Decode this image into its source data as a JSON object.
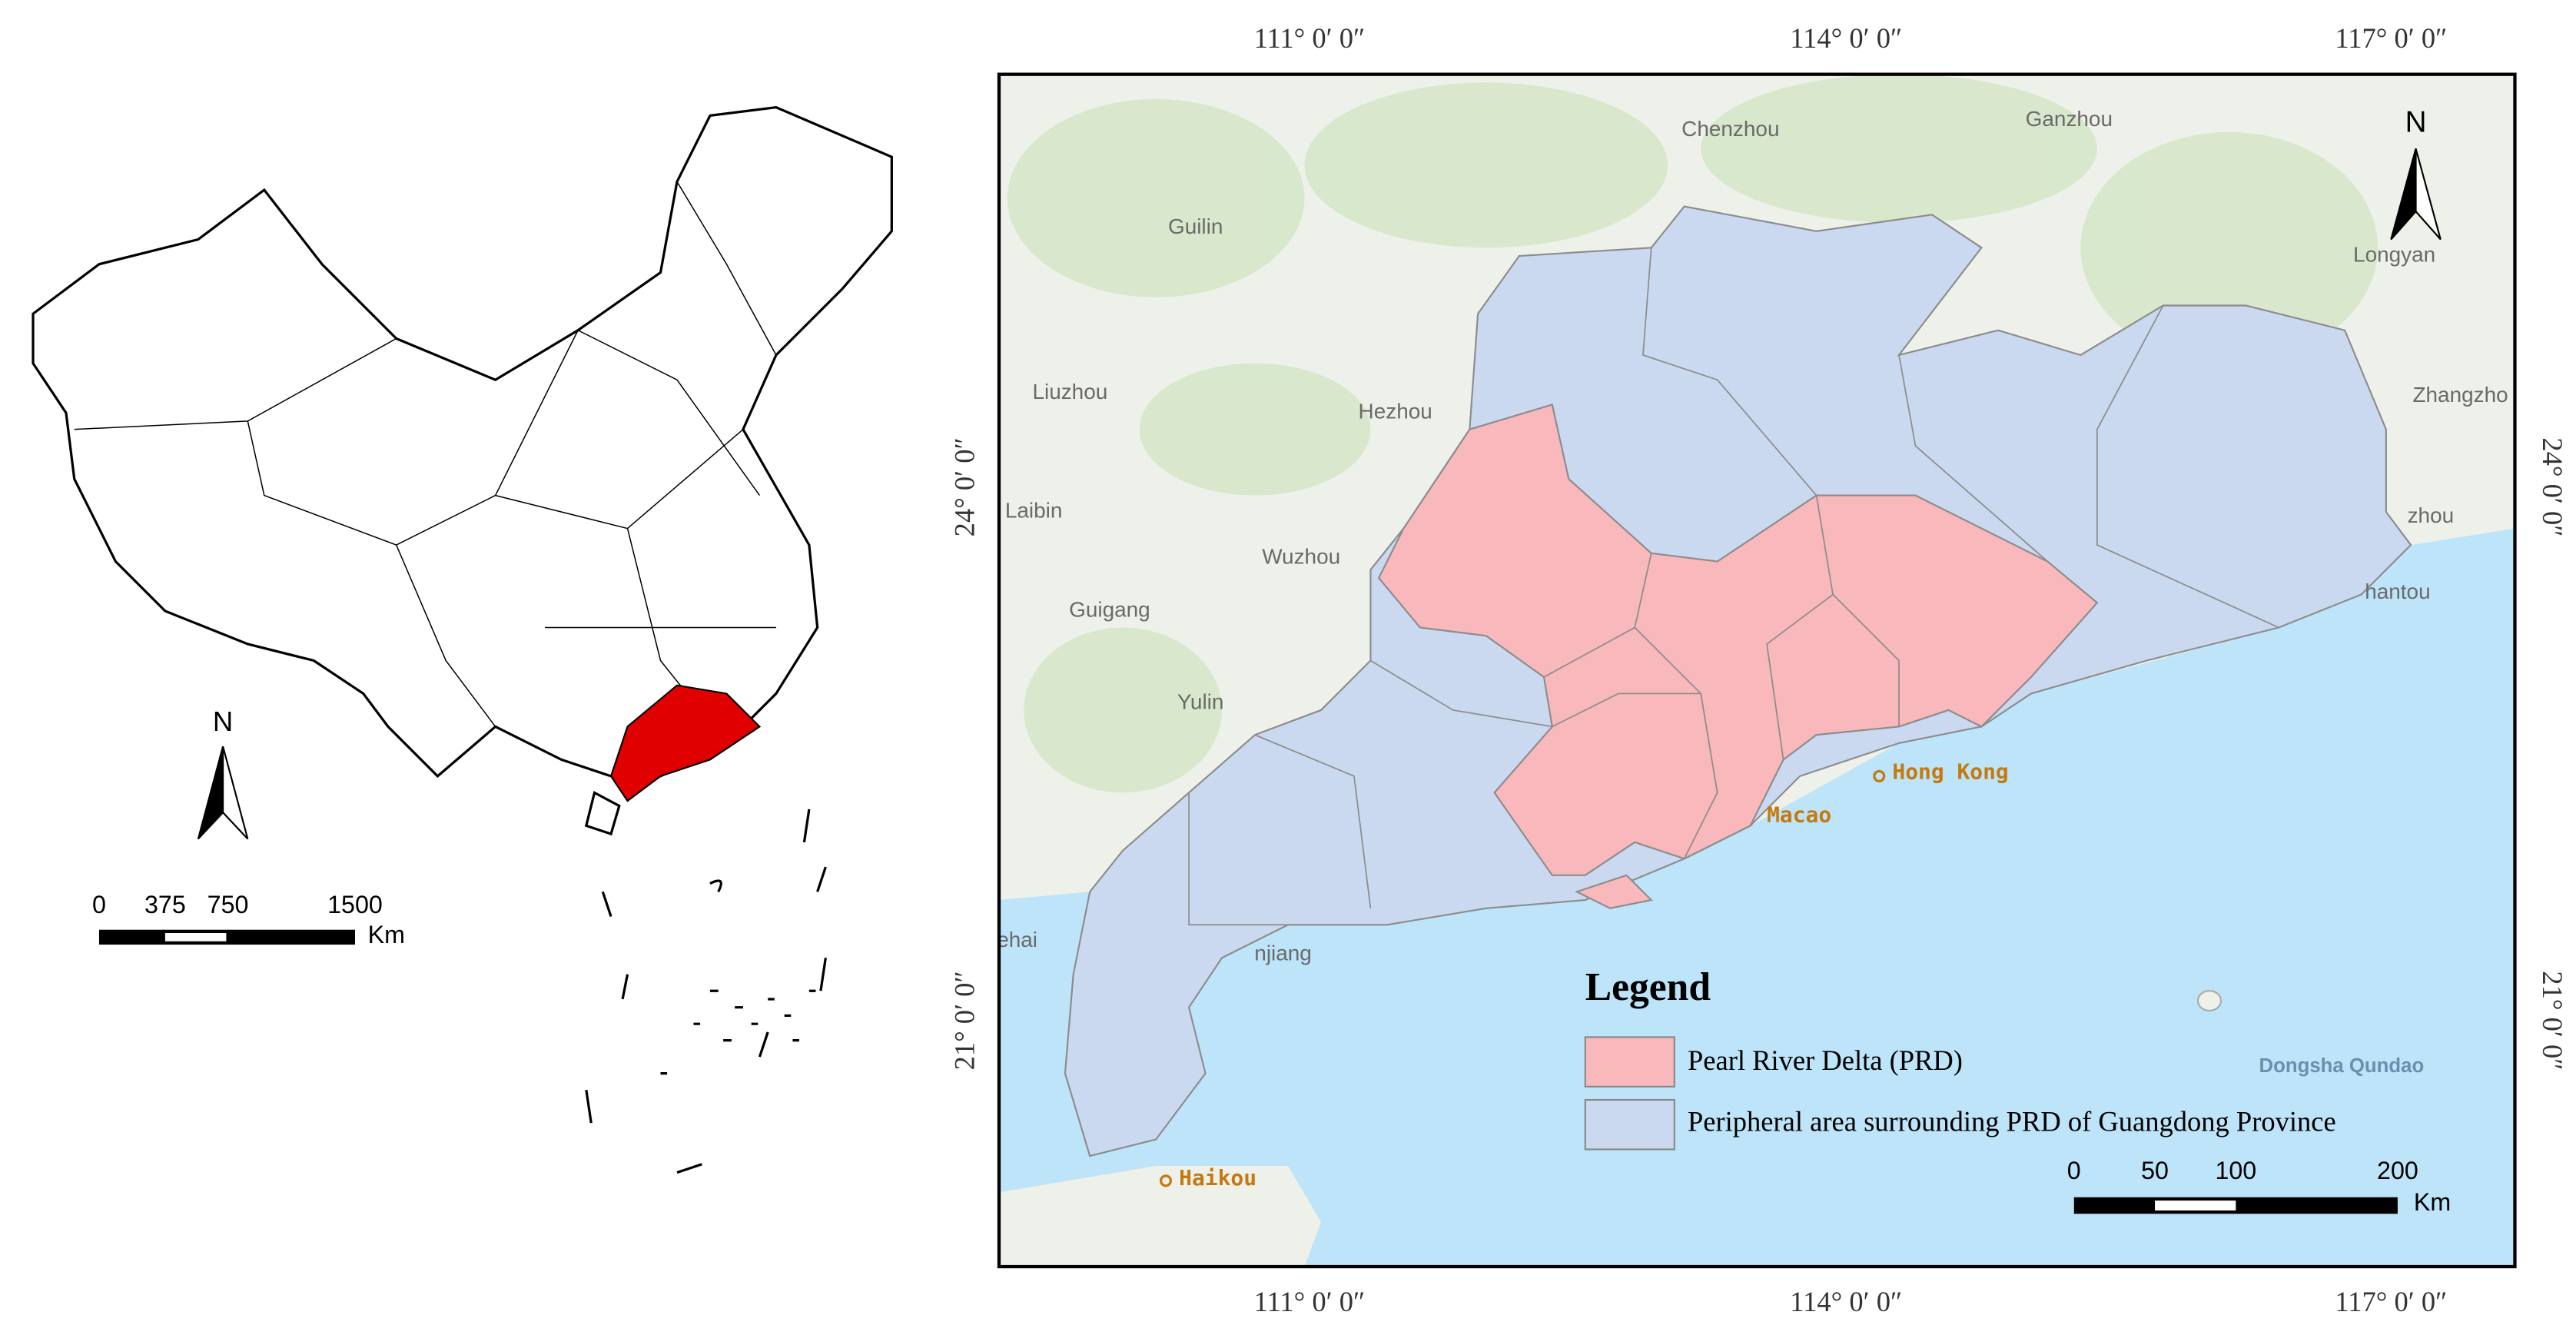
{
  "inset_map": {
    "north_label": "N",
    "scale_labels": [
      "0",
      "375",
      "750",
      "1500"
    ],
    "scale_unit": "Km"
  },
  "main_map": {
    "north_label": "N",
    "top_labels": [
      "111° 0′ 0″",
      "114° 0′ 0″",
      "117° 0′ 0″"
    ],
    "bottom_labels": [
      "111° 0′ 0″",
      "114° 0′ 0″",
      "117° 0′ 0″"
    ],
    "left_labels": [
      "24° 0′ 0″",
      "21° 0′ 0″"
    ],
    "right_labels": [
      "24° 0′ 0″",
      "21° 0′ 0″"
    ],
    "place_labels": [
      "Chenzhou",
      "Ganzhou",
      "Guilin",
      "Longyan",
      "Liuzhou",
      "Hezhou",
      "Zhangzho",
      "Laibin",
      "Wuzhou",
      "Guigang",
      "Yulin",
      "zhou",
      "hantou",
      "njiang",
      "ehai"
    ],
    "city_labels": [
      "Hong Kong",
      "Macao",
      "Haikou"
    ],
    "island_label": "Dongsha Qundao",
    "legend": {
      "title": "Legend",
      "items": [
        {
          "label": "Pearl River Delta (PRD)",
          "color": "#f8b8bc"
        },
        {
          "label": "Peripheral area surrounding PRD of Guangdong Province",
          "color": "#cad8f0"
        }
      ]
    },
    "scale_labels": [
      "0",
      "50",
      "100",
      "200"
    ],
    "scale_unit": "Km"
  }
}
